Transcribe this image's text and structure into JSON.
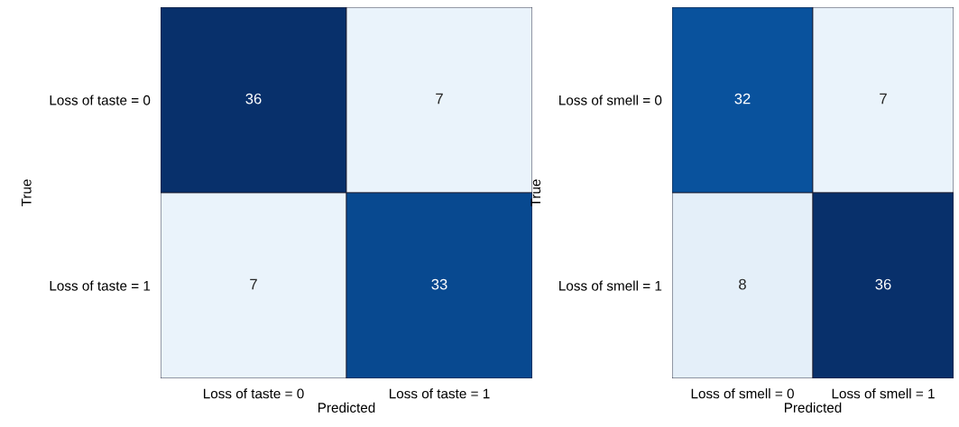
{
  "chart_data": [
    {
      "type": "heatmap",
      "xlabel": "Predicted",
      "ylabel": "True",
      "categories": [
        "Loss of taste = 0",
        "Loss of taste = 1"
      ],
      "y_categories": [
        "Loss of taste = 0",
        "Loss of taste = 1"
      ],
      "cells": [
        [
          36,
          7
        ],
        [
          7,
          33
        ]
      ],
      "data_labels": true
    },
    {
      "type": "heatmap",
      "xlabel": "Predicted",
      "ylabel": "True",
      "categories": [
        "Loss of smell = 0",
        "Loss of smell = 1"
      ],
      "y_categories": [
        "Loss of smell = 0",
        "Loss of smell = 1"
      ],
      "cells": [
        [
          32,
          7
        ],
        [
          8,
          36
        ]
      ],
      "data_labels": true
    }
  ]
}
